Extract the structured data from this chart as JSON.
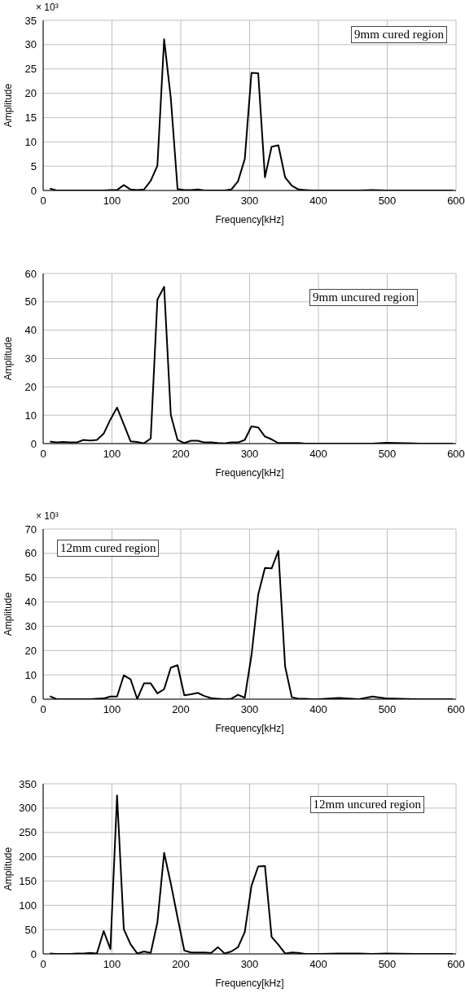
{
  "chart_data": [
    {
      "type": "line",
      "title": "9mm cured region",
      "xlabel": "Frequency[kHz]",
      "ylabel": "Amplitude",
      "annotations": [
        "× 10³"
      ],
      "grid": true,
      "marker": "none",
      "color": "#000000",
      "xlim": [
        0,
        600
      ],
      "xticks": [
        0,
        100,
        200,
        300,
        400,
        500,
        600
      ],
      "ylim": [
        0,
        35
      ],
      "yticks": [
        0,
        5,
        10,
        15,
        20,
        25,
        30,
        35
      ],
      "x": [
        9.8,
        19.5,
        29.3,
        39.1,
        48.8,
        58.6,
        68.4,
        78.1,
        87.9,
        97.7,
        107.4,
        117.2,
        127.0,
        136.7,
        146.5,
        156.3,
        166.0,
        175.8,
        185.5,
        195.3,
        205.1,
        214.8,
        224.6,
        234.4,
        244.1,
        253.9,
        263.7,
        273.4,
        283.2,
        293.0,
        302.7,
        312.5,
        322.3,
        332.0,
        341.8,
        351.6,
        361.3,
        371.1,
        380.9,
        390.6,
        400.4,
        429.7,
        459.0,
        478.5,
        498.0,
        546.9,
        595.7
      ],
      "values": [
        0.4,
        0,
        0,
        0,
        0,
        0,
        0,
        0,
        0,
        0.1,
        0.1,
        1.1,
        0.2,
        0.1,
        0.2,
        2,
        5.1,
        31.1,
        19,
        0.3,
        0.1,
        0.1,
        0.2,
        0,
        0,
        0,
        0,
        0.2,
        1.9,
        6.5,
        24.2,
        24.1,
        2.7,
        9,
        9.3,
        2.7,
        1,
        0.2,
        0.1,
        0,
        0,
        0,
        0,
        0.1,
        0,
        0,
        0
      ]
    },
    {
      "type": "line",
      "title": "9mm uncured region",
      "xlabel": "Frequency[kHz]",
      "ylabel": "Amplitude",
      "grid": true,
      "marker": "none",
      "color": "#000000",
      "xlim": [
        0,
        600
      ],
      "xticks": [
        0,
        100,
        200,
        300,
        400,
        500,
        600
      ],
      "ylim": [
        0,
        60
      ],
      "yticks": [
        0,
        10,
        20,
        30,
        40,
        50,
        60
      ],
      "x": [
        9.8,
        19.5,
        29.3,
        39.1,
        48.8,
        58.6,
        68.4,
        78.1,
        87.9,
        97.7,
        107.4,
        117.2,
        127.0,
        136.7,
        146.5,
        156.3,
        166.0,
        175.8,
        185.5,
        195.3,
        205.1,
        214.8,
        224.6,
        234.4,
        244.1,
        253.9,
        263.7,
        273.4,
        283.2,
        293.0,
        302.7,
        312.5,
        322.3,
        332.0,
        341.8,
        351.6,
        361.3,
        371.1,
        380.9,
        390.6,
        400.4,
        429.7,
        459.0,
        478.5,
        498.0,
        546.9,
        595.7
      ],
      "values": [
        0.7,
        0.4,
        0.6,
        0.4,
        0.4,
        1.3,
        1.1,
        1.3,
        3.5,
        8.5,
        12.7,
        6.8,
        0.8,
        0.6,
        0.1,
        1.8,
        50.8,
        55.3,
        10.1,
        1.3,
        0.2,
        1,
        1,
        0.4,
        0.4,
        0.2,
        0.1,
        0.4,
        0.4,
        1.3,
        6.1,
        5.7,
        2.5,
        1.5,
        0.2,
        0.2,
        0.2,
        0.2,
        0,
        0,
        0,
        0,
        0,
        0,
        0.3,
        0,
        0
      ]
    },
    {
      "type": "line",
      "title": "12mm cured region",
      "xlabel": "Frequency[kHz]",
      "ylabel": "Amplitude",
      "annotations": [
        "× 10³"
      ],
      "grid": true,
      "marker": "none",
      "color": "#000000",
      "xlim": [
        0,
        600
      ],
      "xticks": [
        0,
        100,
        200,
        300,
        400,
        500,
        600
      ],
      "ylim": [
        0,
        70
      ],
      "yticks": [
        0,
        10,
        20,
        30,
        40,
        50,
        60,
        70
      ],
      "x": [
        9.8,
        19.5,
        29.3,
        39.1,
        48.8,
        58.6,
        68.4,
        78.1,
        87.9,
        97.7,
        107.4,
        117.2,
        127.0,
        136.7,
        146.5,
        156.3,
        166.0,
        175.8,
        185.5,
        195.3,
        205.1,
        214.8,
        224.6,
        234.4,
        244.1,
        253.9,
        263.7,
        273.4,
        283.2,
        293.0,
        302.7,
        312.5,
        322.3,
        332.0,
        341.8,
        351.6,
        361.3,
        371.1,
        380.9,
        390.6,
        400.4,
        429.7,
        459.0,
        478.5,
        498.0,
        546.9,
        595.7
      ],
      "values": [
        1.2,
        0,
        0,
        0,
        0,
        0,
        0,
        0.2,
        0.3,
        1.1,
        1.1,
        9.8,
        8.2,
        0.1,
        6.5,
        6.5,
        2.4,
        4.1,
        13,
        14,
        1.6,
        2,
        2.6,
        1.3,
        0.4,
        0.2,
        0,
        0.2,
        1.8,
        0.6,
        18,
        43,
        54,
        53.8,
        61,
        13.5,
        0.8,
        0.2,
        0.2,
        0,
        0,
        0.5,
        0,
        1.1,
        0.3,
        0,
        0
      ]
    },
    {
      "type": "line",
      "title": "12mm uncured region",
      "xlabel": "Frequency[kHz]",
      "ylabel": "Amplitude",
      "grid": true,
      "marker": "none",
      "color": "#000000",
      "xlim": [
        0,
        600
      ],
      "xticks": [
        0,
        100,
        200,
        300,
        400,
        500,
        600
      ],
      "ylim": [
        0,
        350
      ],
      "yticks": [
        0,
        50,
        100,
        150,
        200,
        250,
        300,
        350
      ],
      "x": [
        9.8,
        19.5,
        29.3,
        39.1,
        48.8,
        58.6,
        68.4,
        78.1,
        87.9,
        97.7,
        107.4,
        117.2,
        127.0,
        136.7,
        146.5,
        156.3,
        166.0,
        175.8,
        185.5,
        195.3,
        205.1,
        214.8,
        224.6,
        234.4,
        244.1,
        253.9,
        263.7,
        273.4,
        283.2,
        293.0,
        302.7,
        312.5,
        322.3,
        332.0,
        341.8,
        351.6,
        361.3,
        371.1,
        380.9,
        390.6,
        400.4,
        429.7,
        459.0,
        478.5,
        498.0,
        546.9,
        595.7
      ],
      "values": [
        1,
        0,
        0,
        0,
        1,
        1,
        2,
        1,
        47,
        10,
        326,
        51,
        20,
        1,
        5,
        2,
        65,
        208,
        145,
        75,
        7,
        3,
        3,
        3,
        2,
        14,
        1,
        5,
        14,
        45,
        140,
        180,
        181,
        35,
        19,
        1,
        3,
        2,
        0,
        0,
        0,
        1,
        1,
        0,
        1,
        0,
        0
      ]
    }
  ]
}
